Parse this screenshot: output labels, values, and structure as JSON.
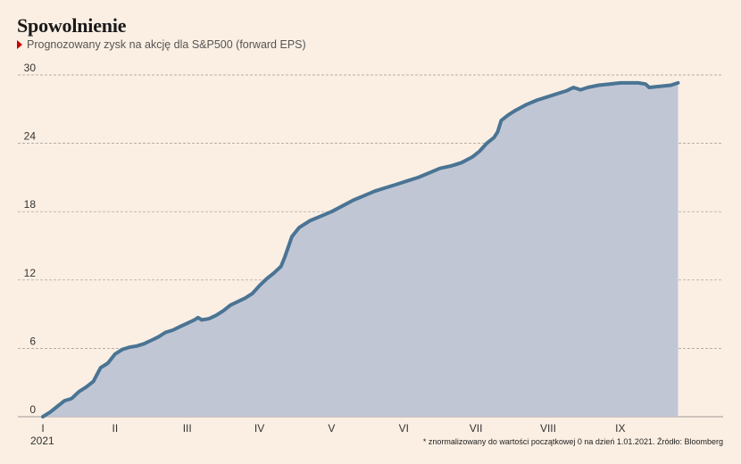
{
  "header": {
    "title": "Spowolnienie",
    "subtitle": "Prognozowany zysk na akcję dla S&P500 (forward EPS)"
  },
  "footnote": "* znormalizowany do wartości początkowej 0 na dzień 1.01.2021. Źródło: Bloomberg",
  "colors": {
    "line": "#4a7494",
    "area": "#c1c6d5",
    "background": "#fbefe3",
    "grid": "#a09a95",
    "marker": "#cc0000"
  },
  "icons": {
    "subtitle_marker": "red-triangle-icon"
  },
  "chart_data": {
    "type": "area",
    "title": "Spowolnienie",
    "subtitle": "Prognozowany zysk na akcję dla S&P500 (forward EPS)",
    "xlabel": "",
    "ylabel": "",
    "year_label": "2021",
    "ylim": [
      0,
      30
    ],
    "yticks": [
      0,
      6,
      12,
      18,
      24,
      30
    ],
    "xlim": [
      1,
      10.4
    ],
    "xticks": [
      {
        "label": "I",
        "value": 1
      },
      {
        "label": "II",
        "value": 2
      },
      {
        "label": "III",
        "value": 3
      },
      {
        "label": "IV",
        "value": 4
      },
      {
        "label": "V",
        "value": 5
      },
      {
        "label": "VI",
        "value": 6
      },
      {
        "label": "VII",
        "value": 7
      },
      {
        "label": "VIII",
        "value": 8
      },
      {
        "label": "IX",
        "value": 9
      }
    ],
    "grid": true,
    "series": [
      {
        "values": [
          [
            1.0,
            0.0
          ],
          [
            1.1,
            0.4
          ],
          [
            1.2,
            0.9
          ],
          [
            1.3,
            1.4
          ],
          [
            1.4,
            1.6
          ],
          [
            1.5,
            2.2
          ],
          [
            1.6,
            2.6
          ],
          [
            1.7,
            3.1
          ],
          [
            1.8,
            4.3
          ],
          [
            1.9,
            4.7
          ],
          [
            2.0,
            5.5
          ],
          [
            2.1,
            5.9
          ],
          [
            2.2,
            6.1
          ],
          [
            2.3,
            6.2
          ],
          [
            2.4,
            6.4
          ],
          [
            2.5,
            6.7
          ],
          [
            2.6,
            7.0
          ],
          [
            2.7,
            7.4
          ],
          [
            2.8,
            7.6
          ],
          [
            2.9,
            7.9
          ],
          [
            3.0,
            8.2
          ],
          [
            3.1,
            8.5
          ],
          [
            3.15,
            8.7
          ],
          [
            3.2,
            8.5
          ],
          [
            3.3,
            8.6
          ],
          [
            3.4,
            8.9
          ],
          [
            3.5,
            9.3
          ],
          [
            3.6,
            9.8
          ],
          [
            3.7,
            10.1
          ],
          [
            3.8,
            10.4
          ],
          [
            3.9,
            10.8
          ],
          [
            4.0,
            11.5
          ],
          [
            4.1,
            12.1
          ],
          [
            4.2,
            12.6
          ],
          [
            4.3,
            13.2
          ],
          [
            4.35,
            14.0
          ],
          [
            4.45,
            15.8
          ],
          [
            4.55,
            16.6
          ],
          [
            4.7,
            17.2
          ],
          [
            4.85,
            17.6
          ],
          [
            5.0,
            18.0
          ],
          [
            5.15,
            18.5
          ],
          [
            5.3,
            19.0
          ],
          [
            5.45,
            19.4
          ],
          [
            5.6,
            19.8
          ],
          [
            5.75,
            20.1
          ],
          [
            5.9,
            20.4
          ],
          [
            6.05,
            20.7
          ],
          [
            6.2,
            21.0
          ],
          [
            6.35,
            21.4
          ],
          [
            6.5,
            21.8
          ],
          [
            6.65,
            22.0
          ],
          [
            6.8,
            22.3
          ],
          [
            6.95,
            22.8
          ],
          [
            7.05,
            23.3
          ],
          [
            7.15,
            24.0
          ],
          [
            7.25,
            24.5
          ],
          [
            7.3,
            25.0
          ],
          [
            7.35,
            26.0
          ],
          [
            7.45,
            26.5
          ],
          [
            7.55,
            26.9
          ],
          [
            7.7,
            27.4
          ],
          [
            7.85,
            27.8
          ],
          [
            8.0,
            28.1
          ],
          [
            8.15,
            28.4
          ],
          [
            8.25,
            28.6
          ],
          [
            8.35,
            28.9
          ],
          [
            8.45,
            28.7
          ],
          [
            8.55,
            28.9
          ],
          [
            8.7,
            29.1
          ],
          [
            8.85,
            29.2
          ],
          [
            9.0,
            29.3
          ],
          [
            9.15,
            29.3
          ],
          [
            9.25,
            29.3
          ],
          [
            9.35,
            29.2
          ],
          [
            9.4,
            28.9
          ],
          [
            9.55,
            29.0
          ],
          [
            9.7,
            29.1
          ],
          [
            9.8,
            29.3
          ]
        ]
      }
    ]
  }
}
